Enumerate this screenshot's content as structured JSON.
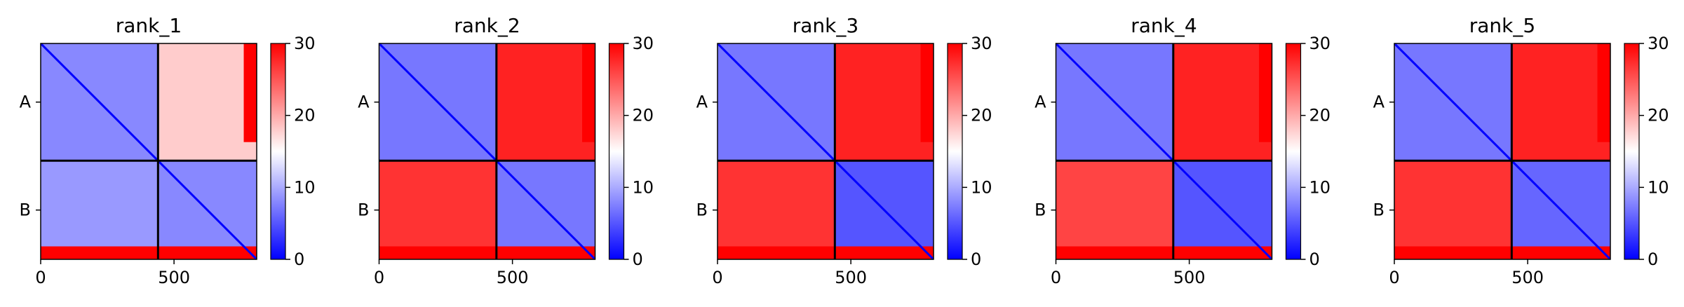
{
  "chart_data": [
    {
      "type": "heatmap",
      "title": "rank_1",
      "xlabel": "",
      "ylabel": "",
      "x_ticks": [
        "0",
        "500"
      ],
      "y_ticks": [
        "A",
        "B"
      ],
      "xlim": [
        0,
        810
      ],
      "chain_boundary": 440,
      "colorbar": {
        "min": 0,
        "max": 30,
        "ticks": [
          "0",
          "10",
          "20",
          "30"
        ],
        "colormap": [
          "#0000ff",
          "#ffffff",
          "#ff0000"
        ]
      },
      "blocks": [
        {
          "rows": "A",
          "cols": "A",
          "mean_value": 8
        },
        {
          "rows": "A",
          "cols": "B",
          "mean_value": 18
        },
        {
          "rows": "B",
          "cols": "A",
          "mean_value": 9
        },
        {
          "rows": "B",
          "cols": "B",
          "mean_value": 8
        }
      ]
    },
    {
      "type": "heatmap",
      "title": "rank_2",
      "xlabel": "",
      "ylabel": "",
      "x_ticks": [
        "0",
        "500"
      ],
      "y_ticks": [
        "A",
        "B"
      ],
      "xlim": [
        0,
        810
      ],
      "chain_boundary": 440,
      "colorbar": {
        "min": 0,
        "max": 30,
        "ticks": [
          "0",
          "10",
          "20",
          "30"
        ],
        "colormap": [
          "#0000ff",
          "#ffffff",
          "#ff0000"
        ]
      },
      "blocks": [
        {
          "rows": "A",
          "cols": "A",
          "mean_value": 7
        },
        {
          "rows": "A",
          "cols": "B",
          "mean_value": 28
        },
        {
          "rows": "B",
          "cols": "A",
          "mean_value": 27
        },
        {
          "rows": "B",
          "cols": "B",
          "mean_value": 7
        }
      ]
    },
    {
      "type": "heatmap",
      "title": "rank_3",
      "xlabel": "",
      "ylabel": "",
      "x_ticks": [
        "0",
        "500"
      ],
      "y_ticks": [
        "A",
        "B"
      ],
      "xlim": [
        0,
        810
      ],
      "chain_boundary": 440,
      "colorbar": {
        "min": 0,
        "max": 30,
        "ticks": [
          "0",
          "10",
          "20",
          "30"
        ],
        "colormap": [
          "#0000ff",
          "#ffffff",
          "#ff0000"
        ]
      },
      "blocks": [
        {
          "rows": "A",
          "cols": "A",
          "mean_value": 7
        },
        {
          "rows": "A",
          "cols": "B",
          "mean_value": 28
        },
        {
          "rows": "B",
          "cols": "A",
          "mean_value": 27
        },
        {
          "rows": "B",
          "cols": "B",
          "mean_value": 5
        }
      ]
    },
    {
      "type": "heatmap",
      "title": "rank_4",
      "xlabel": "",
      "ylabel": "",
      "x_ticks": [
        "0",
        "500"
      ],
      "y_ticks": [
        "A",
        "B"
      ],
      "xlim": [
        0,
        810
      ],
      "chain_boundary": 440,
      "colorbar": {
        "min": 0,
        "max": 30,
        "ticks": [
          "0",
          "10",
          "20",
          "30"
        ],
        "colormap": [
          "#0000ff",
          "#ffffff",
          "#ff0000"
        ]
      },
      "blocks": [
        {
          "rows": "A",
          "cols": "A",
          "mean_value": 7
        },
        {
          "rows": "A",
          "cols": "B",
          "mean_value": 28
        },
        {
          "rows": "B",
          "cols": "A",
          "mean_value": 26
        },
        {
          "rows": "B",
          "cols": "B",
          "mean_value": 5
        }
      ]
    },
    {
      "type": "heatmap",
      "title": "rank_5",
      "xlabel": "",
      "ylabel": "",
      "x_ticks": [
        "0",
        "500"
      ],
      "y_ticks": [
        "A",
        "B"
      ],
      "xlim": [
        0,
        810
      ],
      "chain_boundary": 440,
      "colorbar": {
        "min": 0,
        "max": 30,
        "ticks": [
          "0",
          "10",
          "20",
          "30"
        ],
        "colormap": [
          "#0000ff",
          "#ffffff",
          "#ff0000"
        ]
      },
      "blocks": [
        {
          "rows": "A",
          "cols": "A",
          "mean_value": 7
        },
        {
          "rows": "A",
          "cols": "B",
          "mean_value": 28
        },
        {
          "rows": "B",
          "cols": "A",
          "mean_value": 27
        },
        {
          "rows": "B",
          "cols": "B",
          "mean_value": 6
        }
      ]
    }
  ]
}
